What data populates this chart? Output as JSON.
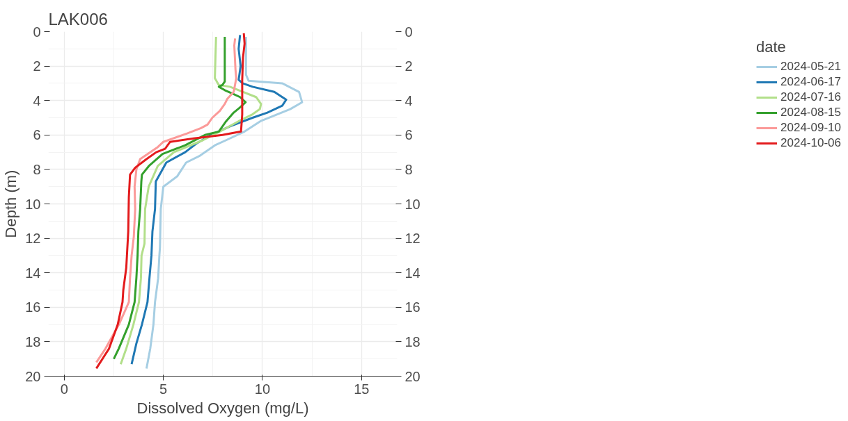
{
  "chart_data": {
    "type": "line",
    "title": "LAK006",
    "xlabel": "Dissolved Oxygen (mg/L)",
    "ylabel": "Depth (m)",
    "legend_title": "date",
    "xlim": [
      -0.8,
      16.8
    ],
    "xticks": [
      0,
      5,
      10,
      15
    ],
    "ylim": [
      20,
      0
    ],
    "yticks": [
      0,
      2,
      4,
      6,
      8,
      10,
      12,
      14,
      16,
      18,
      20
    ],
    "y2lim": [
      20,
      0
    ],
    "y2ticks": [
      0,
      2,
      4,
      6,
      8,
      10,
      12,
      14,
      16,
      18,
      20
    ],
    "grid": true,
    "legend": "right",
    "line_style": "solid",
    "series": [
      {
        "name": "2024-05-21",
        "color": "#a6cee3",
        "x": [
          9.17,
          9.17,
          9.3,
          11.0,
          11.85,
          12.0,
          11.4,
          9.9,
          9.1,
          8.17,
          7.6,
          6.85,
          6.15,
          5.7,
          5.0,
          4.87,
          4.83,
          4.8,
          4.74,
          4.58,
          4.5,
          4.34,
          4.15
        ],
        "values": [
          0.3,
          2.5,
          2.85,
          3.0,
          3.5,
          4.1,
          4.5,
          5.2,
          5.8,
          6.3,
          6.6,
          7.2,
          7.6,
          8.4,
          9.0,
          10.3,
          12.5,
          13,
          14.3,
          15.7,
          17,
          18.4,
          19.56
        ]
      },
      {
        "name": "2024-06-17",
        "color": "#1f78b4",
        "x": [
          8.87,
          8.8,
          8.9,
          8.8,
          9.0,
          9.5,
          10.6,
          11.0,
          11.2,
          11.0,
          10.25,
          9.5,
          8.36,
          7.4,
          6.66,
          6.1,
          5.15,
          4.62,
          4.58,
          4.45,
          4.4,
          4.3,
          4.2,
          3.92,
          3.64,
          3.4
        ],
        "values": [
          0.2,
          1.0,
          2.0,
          2.8,
          3.0,
          3.2,
          3.5,
          3.8,
          3.95,
          4.3,
          4.7,
          5.0,
          5.5,
          6.0,
          6.5,
          7.0,
          7.6,
          8.7,
          10.3,
          11.6,
          13,
          14.3,
          15.7,
          17,
          18.1,
          19.3
        ]
      },
      {
        "name": "2024-07-16",
        "color": "#b2df8a",
        "x": [
          7.66,
          7.6,
          7.8,
          8.36,
          9.68,
          9.93,
          9.87,
          9.5,
          8.8,
          7.85,
          7.0,
          5.53,
          4.72,
          4.26,
          4.08,
          4.05,
          3.9,
          3.87,
          3.77,
          3.49,
          3.13,
          2.85
        ],
        "values": [
          0.3,
          2.7,
          3.1,
          3.2,
          3.8,
          4.2,
          4.5,
          4.8,
          5.2,
          5.8,
          6.3,
          7.0,
          7.8,
          9.0,
          10.3,
          12.3,
          13,
          14.3,
          15.7,
          17,
          18.4,
          19.3
        ]
      },
      {
        "name": "2024-08-15",
        "color": "#33a02c",
        "x": [
          8.1,
          8.1,
          7.98,
          7.8,
          8.1,
          8.5,
          8.87,
          9.15,
          8.87,
          8.55,
          8.17,
          7.8,
          7.1,
          6.1,
          4.96,
          4.27,
          3.92,
          3.89,
          3.83,
          3.74,
          3.7,
          3.64,
          3.55,
          3.26,
          2.75,
          2.5
        ],
        "values": [
          0.3,
          2.9,
          3.1,
          3.2,
          3.4,
          3.6,
          3.8,
          4.1,
          4.4,
          4.7,
          5.2,
          5.8,
          6.0,
          6.6,
          7.1,
          7.8,
          8.3,
          8.7,
          10.3,
          11.6,
          13,
          14.3,
          15.7,
          17,
          18.4,
          19.0
        ]
      },
      {
        "name": "2024-09-10",
        "color": "#fb9a99",
        "x": [
          8.62,
          8.58,
          8.64,
          8.68,
          8.55,
          8.23,
          8.1,
          7.85,
          7.47,
          7.23,
          6.9,
          6.22,
          5.0,
          4.72,
          3.83,
          3.64,
          3.55,
          3.58,
          3.51,
          3.4,
          3.32,
          3.26,
          2.76,
          2.08,
          1.62
        ],
        "values": [
          0.4,
          0.8,
          2.2,
          2.7,
          3.5,
          3.9,
          4.2,
          4.6,
          5.0,
          5.4,
          5.6,
          5.9,
          6.4,
          6.7,
          7.4,
          8.0,
          9.0,
          10.3,
          11.9,
          13,
          14.3,
          15.7,
          17,
          18.4,
          19.2
        ]
      },
      {
        "name": "2024-10-06",
        "color": "#e31a1c",
        "x": [
          9.06,
          9.1,
          9.02,
          8.98,
          8.98,
          8.92,
          7.98,
          6.53,
          5.34,
          5.09,
          4.64,
          4.15,
          3.58,
          3.32,
          3.26,
          3.23,
          3.13,
          2.98,
          2.94,
          2.7,
          2.26,
          1.62
        ],
        "values": [
          0.1,
          0.7,
          1.5,
          2.8,
          4.8,
          5.8,
          6.0,
          6.2,
          6.4,
          6.8,
          7.0,
          7.4,
          7.9,
          8.3,
          9.6,
          11.6,
          13.7,
          15.0,
          15.7,
          17,
          18.4,
          19.55
        ]
      }
    ]
  }
}
